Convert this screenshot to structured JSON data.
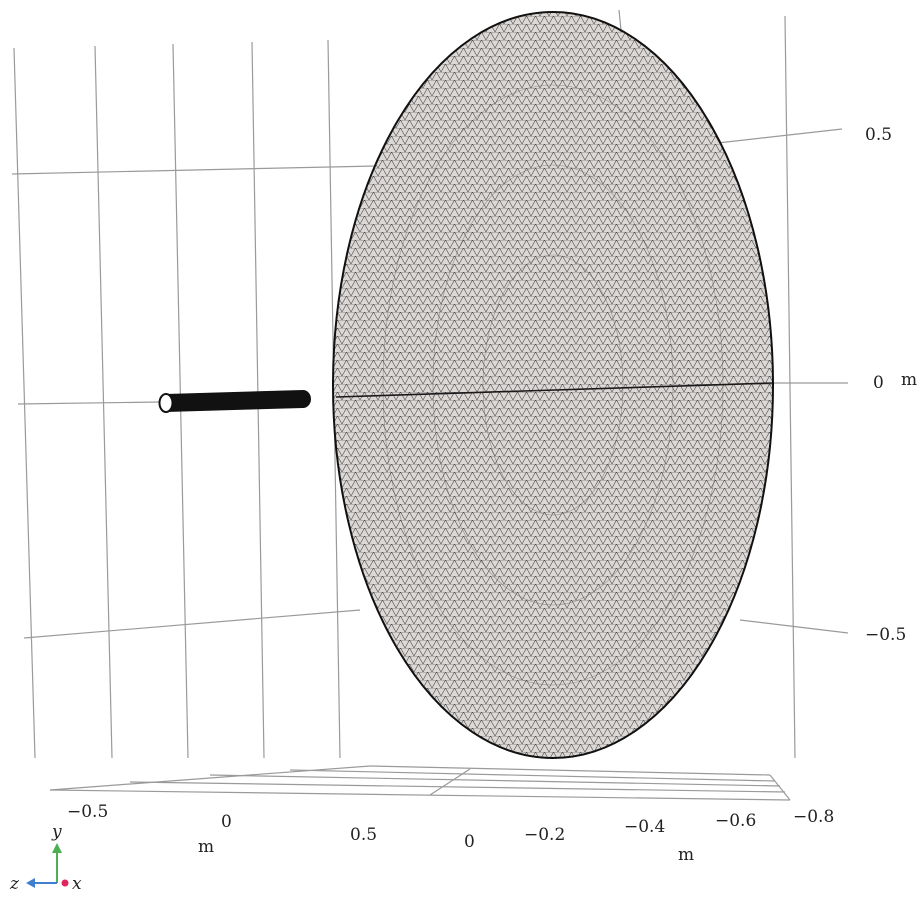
{
  "scene": {
    "y_axis": {
      "ticks": [
        "0.5",
        "0",
        "−0.5"
      ],
      "unit": "m"
    },
    "x_axis": {
      "ticks": [
        "−0.5",
        "0",
        "0.5"
      ],
      "unit": "m"
    },
    "z_axis": {
      "ticks": [
        "0",
        "−0.2",
        "−0.4",
        "−0.6",
        "−0.8"
      ],
      "unit": "m"
    },
    "triad": {
      "y": "y",
      "z": "z",
      "x": "x"
    },
    "colors": {
      "mesh_fill": "#dcd8d6",
      "mesh_lines": "#3a3a3a",
      "grid": "#9a9a9a",
      "triad_y": "#4caf50",
      "triad_z": "#3f7fd0",
      "triad_x": "#e0245e"
    },
    "objects": [
      "meshed-disk",
      "cylinder-rod"
    ]
  }
}
